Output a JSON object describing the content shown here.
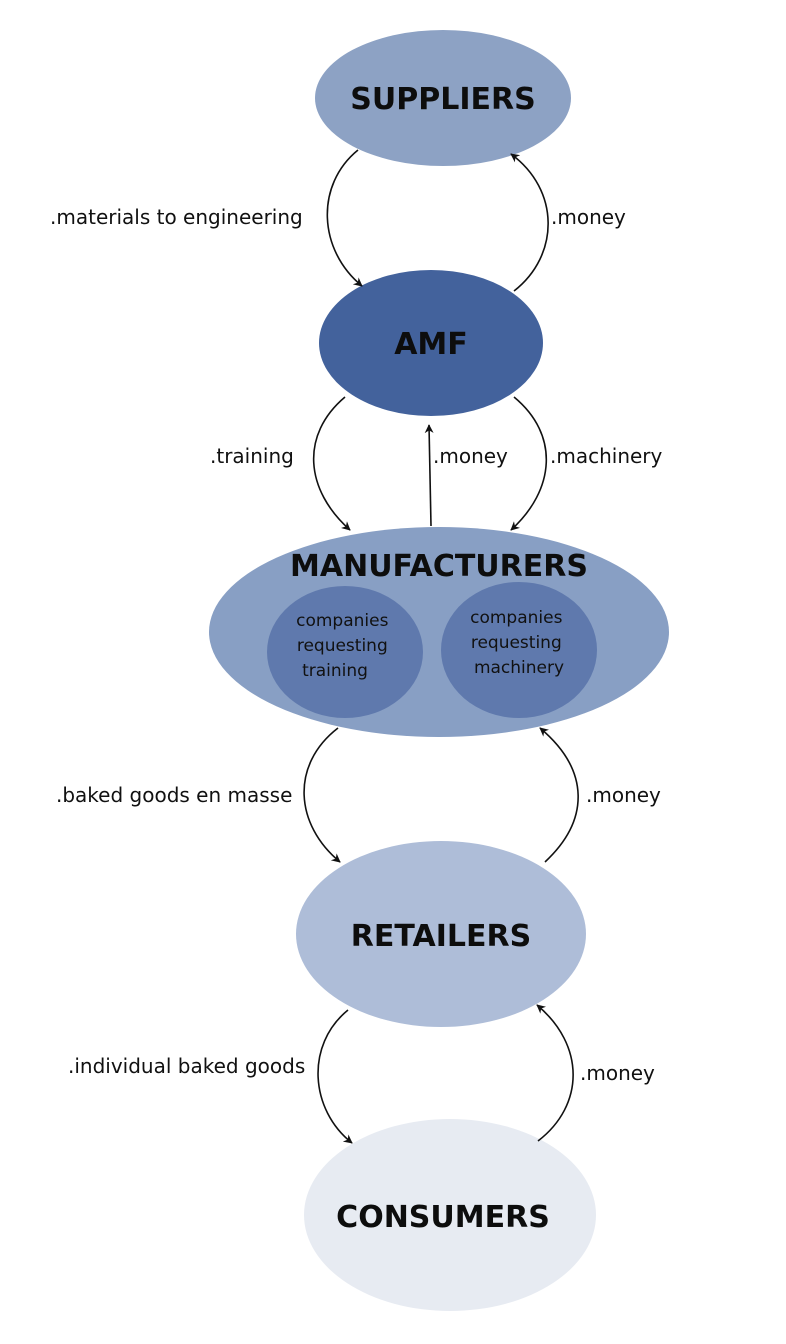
{
  "colors": {
    "suppliers": "#8da2c4",
    "amf": "#43629c",
    "manufacturers": "#889fc4",
    "submarket": "#5f79ad",
    "retailers": "#aebdd8",
    "consumers": "#e7ebf2",
    "arrow": "#111111"
  },
  "nodes": {
    "suppliers": "SUPPLIERS",
    "amf": "AMF",
    "manufacturers": "MANUFACTURERS",
    "retailers": "RETAILERS",
    "consumers": "CONSUMERS"
  },
  "submarkets": {
    "training": [
      "companies",
      "requesting",
      "training"
    ],
    "machinery": [
      "companies",
      "requesting",
      "machinery"
    ]
  },
  "edges": {
    "suppliers_to_amf": ".materials to engineering",
    "amf_to_suppliers": ".money",
    "amf_to_manufacturers_training": ".training",
    "manufacturers_to_amf": ".money",
    "amf_to_manufacturers_machinery": ".machinery",
    "manufacturers_to_retailers": ".baked goods en masse",
    "retailers_to_manufacturers": ".money",
    "retailers_to_consumers": ".individual baked goods",
    "consumers_to_retailers": ".money"
  }
}
